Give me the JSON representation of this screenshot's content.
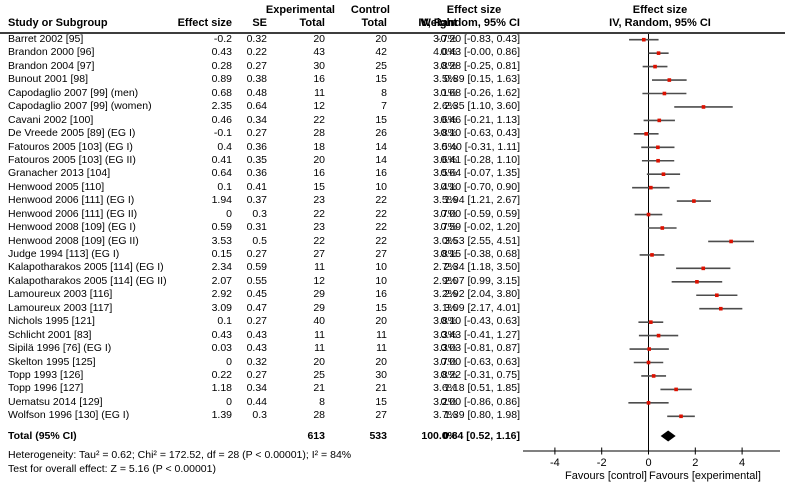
{
  "figure": {
    "columns": {
      "group_experimental": "Experimental",
      "group_control": "Control",
      "effect_size_over_ci": "Effect size",
      "study": "Study or Subgroup",
      "effect": "Effect size",
      "se": "SE",
      "total": "Total",
      "weight": "Weight",
      "ci": "IV, Random, 95% CI",
      "plot_title_line1": "Effect size",
      "plot_title_line2": "IV, Random, 95% CI"
    },
    "footnotes": {
      "heterogeneity": "Heterogeneity: Tau² = 0.62; Chi² = 172.52, df = 28 (P < 0.00001); I² = 84%",
      "overall_test": "Test for overall effect: Z = 5.16 (P < 0.00001)"
    }
  },
  "chart_data": {
    "type": "forest",
    "effect_measure": "IV, Random, 95% CI",
    "rows": [
      {
        "study": "Barret 2002 [95]",
        "effect": "-0.2",
        "se": "0.32",
        "exp_total": "20",
        "ctrl_total": "20",
        "weight": "3.7%",
        "ci_text": "-0.20 [-0.83, 0.43]",
        "est": -0.2,
        "lo": -0.83,
        "hi": 0.43
      },
      {
        "study": "Brandon 2000 [96]",
        "effect": "0.43",
        "se": "0.22",
        "exp_total": "43",
        "ctrl_total": "42",
        "weight": "4.0%",
        "ci_text": "0.43 [-0.00, 0.86]",
        "est": 0.43,
        "lo": 0.0,
        "hi": 0.86
      },
      {
        "study": "Brandon 2004 [97]",
        "effect": "0.28",
        "se": "0.27",
        "exp_total": "30",
        "ctrl_total": "25",
        "weight": "3.8%",
        "ci_text": "0.28 [-0.25, 0.81]",
        "est": 0.28,
        "lo": -0.25,
        "hi": 0.81
      },
      {
        "study": "Bunout 2001 [98]",
        "effect": "0.89",
        "se": "0.38",
        "exp_total": "16",
        "ctrl_total": "15",
        "weight": "3.5%",
        "ci_text": "0.89 [0.15, 1.63]",
        "est": 0.89,
        "lo": 0.15,
        "hi": 1.63
      },
      {
        "study": "Capodaglio 2007 [99] (men)",
        "effect": "0.68",
        "se": "0.48",
        "exp_total": "11",
        "ctrl_total": "8",
        "weight": "3.1%",
        "ci_text": "0.68 [-0.26, 1.62]",
        "est": 0.68,
        "lo": -0.26,
        "hi": 1.62
      },
      {
        "study": "Capodaglio 2007 [99] (women)",
        "effect": "2.35",
        "se": "0.64",
        "exp_total": "12",
        "ctrl_total": "7",
        "weight": "2.6%",
        "ci_text": "2.35 [1.10, 3.60]",
        "est": 2.35,
        "lo": 1.1,
        "hi": 3.6
      },
      {
        "study": "Cavani 2002 [100]",
        "effect": "0.46",
        "se": "0.34",
        "exp_total": "22",
        "ctrl_total": "15",
        "weight": "3.6%",
        "ci_text": "0.46 [-0.21, 1.13]",
        "est": 0.46,
        "lo": -0.21,
        "hi": 1.13
      },
      {
        "study": "De Vreede 2005 [89] (EG I)",
        "effect": "-0.1",
        "se": "0.27",
        "exp_total": "28",
        "ctrl_total": "26",
        "weight": "3.8%",
        "ci_text": "-0.10 [-0.63, 0.43]",
        "est": -0.1,
        "lo": -0.63,
        "hi": 0.43
      },
      {
        "study": "Fatouros 2005 [103] (EG I)",
        "effect": "0.4",
        "se": "0.36",
        "exp_total": "18",
        "ctrl_total": "14",
        "weight": "3.5%",
        "ci_text": "0.40 [-0.31, 1.11]",
        "est": 0.4,
        "lo": -0.31,
        "hi": 1.11
      },
      {
        "study": "Fatouros 2005 [103] (EG II)",
        "effect": "0.41",
        "se": "0.35",
        "exp_total": "20",
        "ctrl_total": "14",
        "weight": "3.6%",
        "ci_text": "0.41 [-0.28, 1.10]",
        "est": 0.41,
        "lo": -0.28,
        "hi": 1.1
      },
      {
        "study": "Granacher 2013 [104]",
        "effect": "0.64",
        "se": "0.36",
        "exp_total": "16",
        "ctrl_total": "16",
        "weight": "3.5%",
        "ci_text": "0.64 [-0.07, 1.35]",
        "est": 0.64,
        "lo": -0.07,
        "hi": 1.35
      },
      {
        "study": "Henwood 2005 [110]",
        "effect": "0.1",
        "se": "0.41",
        "exp_total": "15",
        "ctrl_total": "10",
        "weight": "3.4%",
        "ci_text": "0.10 [-0.70, 0.90]",
        "est": 0.1,
        "lo": -0.7,
        "hi": 0.9
      },
      {
        "study": "Henwood 2006 [111] (EG I)",
        "effect": "1.94",
        "se": "0.37",
        "exp_total": "23",
        "ctrl_total": "22",
        "weight": "3.5%",
        "ci_text": "1.94 [1.21, 2.67]",
        "est": 1.94,
        "lo": 1.21,
        "hi": 2.67
      },
      {
        "study": "Henwood 2006 [111] (EG II)",
        "effect": "0",
        "se": "0.3",
        "exp_total": "22",
        "ctrl_total": "22",
        "weight": "3.7%",
        "ci_text": "0.00 [-0.59, 0.59]",
        "est": 0,
        "lo": -0.59,
        "hi": 0.59
      },
      {
        "study": "Henwood 2008 [109] (EG I)",
        "effect": "0.59",
        "se": "0.31",
        "exp_total": "23",
        "ctrl_total": "22",
        "weight": "3.7%",
        "ci_text": "0.59 [-0.02, 1.20]",
        "est": 0.59,
        "lo": -0.02,
        "hi": 1.2
      },
      {
        "study": "Henwood 2008 [109] (EG II)",
        "effect": "3.53",
        "se": "0.5",
        "exp_total": "22",
        "ctrl_total": "22",
        "weight": "3.0%",
        "ci_text": "3.53 [2.55, 4.51]",
        "est": 3.53,
        "lo": 2.55,
        "hi": 4.51
      },
      {
        "study": "Judge 1994 [113] (EG I)",
        "effect": "0.15",
        "se": "0.27",
        "exp_total": "27",
        "ctrl_total": "27",
        "weight": "3.8%",
        "ci_text": "0.15 [-0.38, 0.68]",
        "est": 0.15,
        "lo": -0.38,
        "hi": 0.68
      },
      {
        "study": "Kalapotharakos 2005 [114] (EG I)",
        "effect": "2.34",
        "se": "0.59",
        "exp_total": "11",
        "ctrl_total": "10",
        "weight": "2.7%",
        "ci_text": "2.34 [1.18, 3.50]",
        "est": 2.34,
        "lo": 1.18,
        "hi": 3.5
      },
      {
        "study": "Kalapotharakos 2005 [114] (EG II)",
        "effect": "2.07",
        "se": "0.55",
        "exp_total": "12",
        "ctrl_total": "10",
        "weight": "2.9%",
        "ci_text": "2.07 [0.99, 3.15]",
        "est": 2.07,
        "lo": 0.99,
        "hi": 3.15
      },
      {
        "study": "Lamoureux 2003 [116]",
        "effect": "2.92",
        "se": "0.45",
        "exp_total": "29",
        "ctrl_total": "16",
        "weight": "3.2%",
        "ci_text": "2.92 [2.04, 3.80]",
        "est": 2.92,
        "lo": 2.04,
        "hi": 3.8
      },
      {
        "study": "Lamoureux 2003 [117]",
        "effect": "3.09",
        "se": "0.47",
        "exp_total": "29",
        "ctrl_total": "15",
        "weight": "3.1%",
        "ci_text": "3.09 [2.17, 4.01]",
        "est": 3.09,
        "lo": 2.17,
        "hi": 4.01
      },
      {
        "study": "Nichols 1995 [121]",
        "effect": "0.1",
        "se": "0.27",
        "exp_total": "40",
        "ctrl_total": "20",
        "weight": "3.8%",
        "ci_text": "0.10 [-0.43, 0.63]",
        "est": 0.1,
        "lo": -0.43,
        "hi": 0.63
      },
      {
        "study": "Schlicht 2001 [83]",
        "effect": "0.43",
        "se": "0.43",
        "exp_total": "11",
        "ctrl_total": "11",
        "weight": "3.3%",
        "ci_text": "0.43 [-0.41, 1.27]",
        "est": 0.43,
        "lo": -0.41,
        "hi": 1.27
      },
      {
        "study": "Sipilä 1996 [76] (EG I)",
        "effect": "0.03",
        "se": "0.43",
        "exp_total": "11",
        "ctrl_total": "11",
        "weight": "3.3%",
        "ci_text": "0.03 [-0.81, 0.87]",
        "est": 0.03,
        "lo": -0.81,
        "hi": 0.87
      },
      {
        "study": "Skelton 1995 [125]",
        "effect": "0",
        "se": "0.32",
        "exp_total": "20",
        "ctrl_total": "20",
        "weight": "3.7%",
        "ci_text": "0.00 [-0.63, 0.63]",
        "est": 0,
        "lo": -0.63,
        "hi": 0.63
      },
      {
        "study": "Topp 1993 [126]",
        "effect": "0.22",
        "se": "0.27",
        "exp_total": "25",
        "ctrl_total": "30",
        "weight": "3.8%",
        "ci_text": "0.22 [-0.31, 0.75]",
        "est": 0.22,
        "lo": -0.31,
        "hi": 0.75
      },
      {
        "study": "Topp 1996 [127]",
        "effect": "1.18",
        "se": "0.34",
        "exp_total": "21",
        "ctrl_total": "21",
        "weight": "3.6%",
        "ci_text": "1.18 [0.51, 1.85]",
        "est": 1.18,
        "lo": 0.51,
        "hi": 1.85
      },
      {
        "study": "Uematsu 2014 [129]",
        "effect": "0",
        "se": "0.44",
        "exp_total": "8",
        "ctrl_total": "15",
        "weight": "3.2%",
        "ci_text": "0.00 [-0.86, 0.86]",
        "est": 0,
        "lo": -0.86,
        "hi": 0.86
      },
      {
        "study": "Wolfson 1996 [130] (EG I)",
        "effect": "1.39",
        "se": "0.3",
        "exp_total": "28",
        "ctrl_total": "27",
        "weight": "3.7%",
        "ci_text": "1.39 [0.80, 1.98]",
        "est": 1.39,
        "lo": 0.8,
        "hi": 1.98
      }
    ],
    "overall": {
      "label": "Total (95% CI)",
      "exp_total": "613",
      "ctrl_total": "533",
      "weight": "100.0%",
      "ci_text": "0.84 [0.52, 1.16]",
      "est": 0.84,
      "lo": 0.52,
      "hi": 1.16
    },
    "axis": {
      "ticks": [
        -4,
        -2,
        0,
        2,
        4
      ],
      "xlim": [
        -5.3,
        5.8
      ],
      "favours_left": "Favours [control]",
      "favours_right": "Favours [experimental]"
    },
    "colors": {
      "marker": "#dd1100",
      "ci_line": "#4d4d4d",
      "axis": "#000000",
      "diamond": "#000000",
      "rule": "#3d3d3d"
    }
  }
}
